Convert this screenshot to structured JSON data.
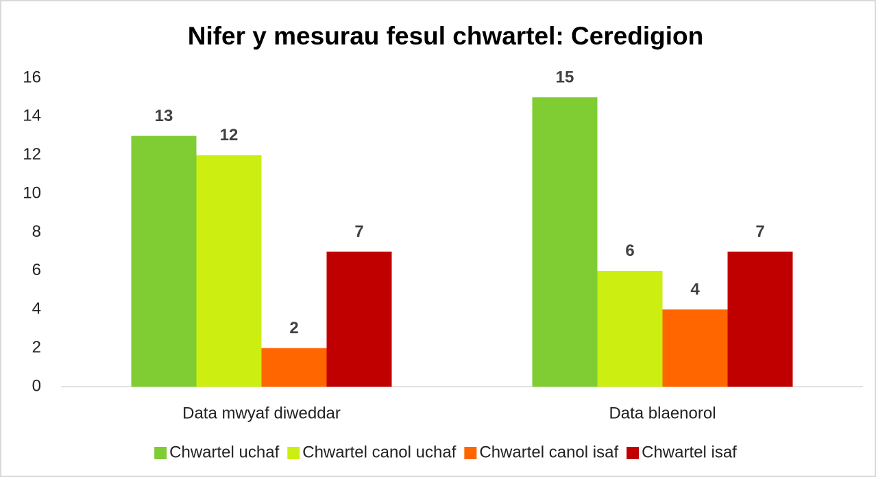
{
  "chart_data": {
    "type": "bar",
    "title": "Nifer y mesurau fesul chwartel: Ceredigion",
    "categories": [
      "Data mwyaf diweddar",
      "Data blaenorol"
    ],
    "series": [
      {
        "name": "Chwartel uchaf",
        "color": "#80cc33",
        "values": [
          13,
          15
        ]
      },
      {
        "name": "Chwartel canol uchaf",
        "color": "#ccee11",
        "values": [
          12,
          6
        ]
      },
      {
        "name": "Chwartel canol isaf",
        "color": "#ff6600",
        "values": [
          2,
          4
        ]
      },
      {
        "name": "Chwartel isaf",
        "color": "#c00000",
        "values": [
          7,
          7
        ]
      }
    ],
    "ylim": [
      0,
      16
    ],
    "yticks": [
      0,
      2,
      4,
      6,
      8,
      10,
      12,
      14,
      16
    ],
    "grid": false,
    "legend": "bottom"
  }
}
